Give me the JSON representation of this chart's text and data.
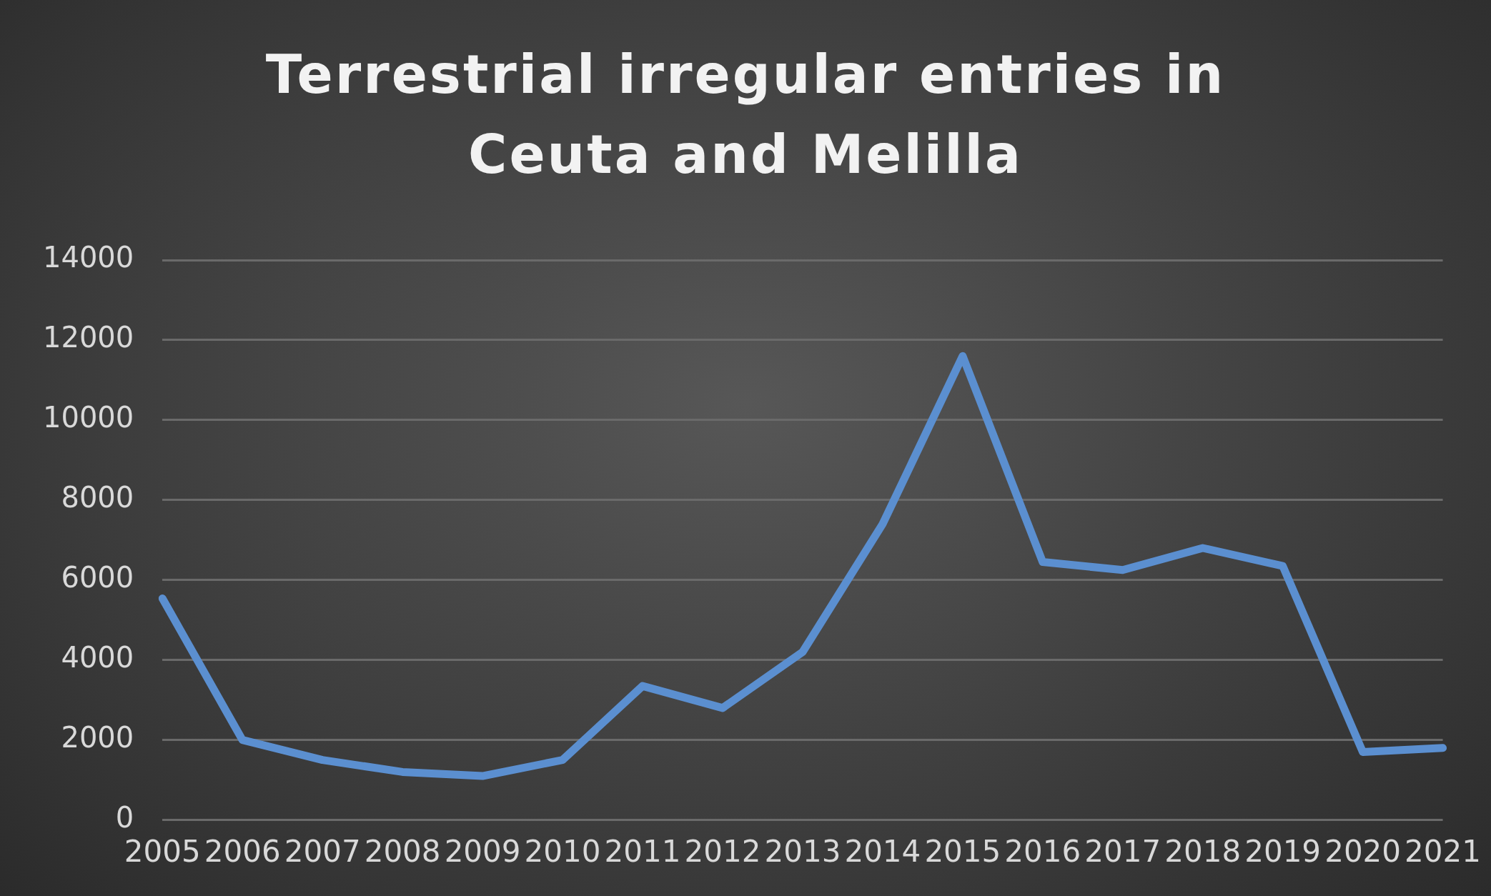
{
  "chart_data": {
    "type": "line",
    "title": "Terrestrial irregular entries in Ceuta and Melilla",
    "categories": [
      "2005",
      "2006",
      "2007",
      "2008",
      "2009",
      "2010",
      "2011",
      "2012",
      "2013",
      "2014",
      "2015",
      "2016",
      "2017",
      "2018",
      "2019",
      "2020",
      "2021"
    ],
    "series": [
      {
        "color": "#5b8fd0",
        "values": [
          5540,
          2000,
          1500,
          1200,
          1100,
          1500,
          3350,
          2800,
          4200,
          7400,
          11600,
          6450,
          6250,
          6800,
          6350,
          1700,
          1800
        ]
      }
    ],
    "ylim": [
      0,
      14000
    ],
    "yticks": [
      0,
      2000,
      4000,
      6000,
      8000,
      10000,
      12000,
      14000
    ],
    "grid": "y",
    "legend": false,
    "marker": "none",
    "line_style": "solid"
  }
}
